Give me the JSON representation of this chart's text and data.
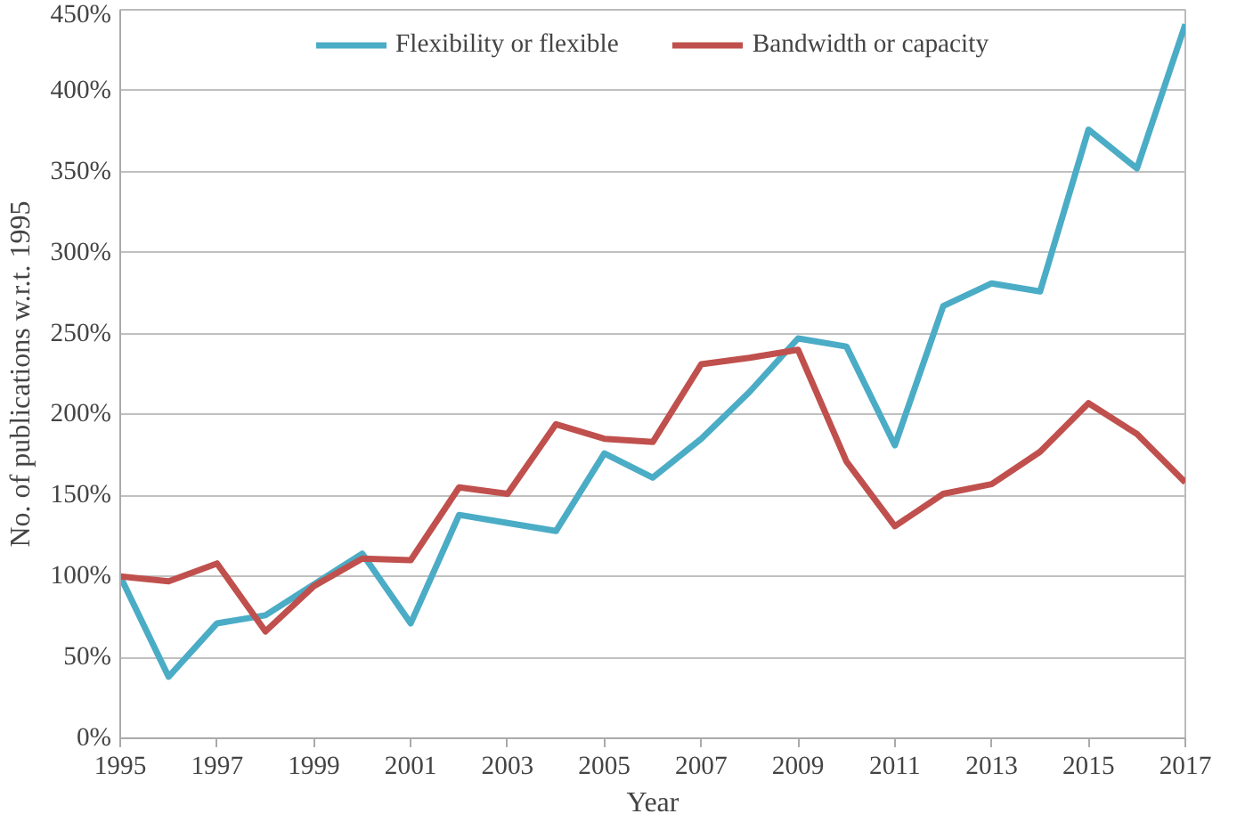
{
  "chart_data": {
    "type": "line",
    "xlabel": "Year",
    "ylabel": "No. of publications w.r.t. 1995",
    "x": [
      1995,
      1996,
      1997,
      1998,
      1999,
      2000,
      2001,
      2002,
      2003,
      2004,
      2005,
      2006,
      2007,
      2008,
      2009,
      2010,
      2011,
      2012,
      2013,
      2014,
      2015,
      2016,
      2017
    ],
    "series": [
      {
        "name": "Flexibility or flexible",
        "color": "#4bacc6",
        "values": [
          100,
          38,
          71,
          76,
          95,
          114,
          71,
          138,
          133,
          128,
          176,
          161,
          185,
          214,
          247,
          242,
          181,
          267,
          281,
          276,
          376,
          352,
          441
        ]
      },
      {
        "name": "Bandwidth or capacity",
        "color": "#c0504d",
        "values": [
          100,
          97,
          108,
          66,
          94,
          111,
          110,
          155,
          151,
          194,
          185,
          183,
          231,
          235,
          240,
          171,
          131,
          151,
          157,
          177,
          207,
          188,
          158
        ]
      }
    ],
    "xlim": [
      1995,
      2017
    ],
    "xticks": [
      1995,
      1997,
      1999,
      2001,
      2003,
      2005,
      2007,
      2009,
      2011,
      2013,
      2015,
      2017
    ],
    "ylim": [
      0,
      450
    ],
    "yticks": [
      {
        "value": 0,
        "label": "0%"
      },
      {
        "value": 50,
        "label": "50%"
      },
      {
        "value": 100,
        "label": "100%"
      },
      {
        "value": 150,
        "label": "150%"
      },
      {
        "value": 200,
        "label": "200%"
      },
      {
        "value": 250,
        "label": "250%"
      },
      {
        "value": 300,
        "label": "300%"
      },
      {
        "value": 350,
        "label": "350%"
      },
      {
        "value": 400,
        "label": "400%"
      },
      {
        "value": 450,
        "label": "450%"
      }
    ],
    "grid": "y",
    "legend": "top",
    "marker": "none",
    "line_style": "solid"
  }
}
